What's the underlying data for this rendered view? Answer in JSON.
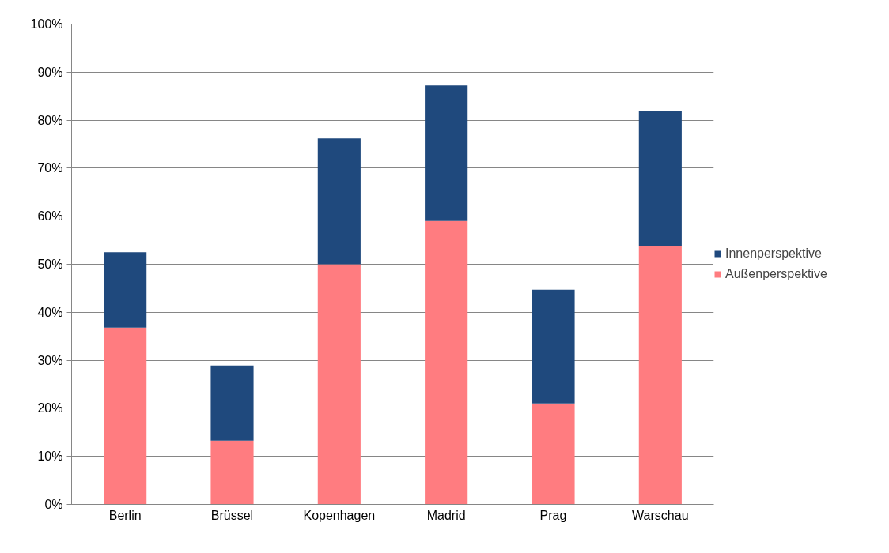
{
  "chart_data": {
    "type": "bar",
    "stacked": true,
    "categories": [
      "Berlin",
      "Brüssel",
      "Kopenhagen",
      "Madrid",
      "Prag",
      "Warschau"
    ],
    "series": [
      {
        "name": "Außenperspektive",
        "color": "#ff7c80",
        "values": [
          36.8,
          13.3,
          50.0,
          59.0,
          21.0,
          53.7
        ]
      },
      {
        "name": "Innenperspektive",
        "color": "#1f497d",
        "values": [
          15.7,
          15.6,
          26.2,
          28.2,
          23.7,
          28.2
        ]
      }
    ],
    "ylim": [
      0,
      100
    ],
    "yticks": [
      {
        "value": 0,
        "label": "0%"
      },
      {
        "value": 10,
        "label": "10%"
      },
      {
        "value": 20,
        "label": "20%"
      },
      {
        "value": 30,
        "label": "30%"
      },
      {
        "value": 40,
        "label": "40%"
      },
      {
        "value": 50,
        "label": "50%"
      },
      {
        "value": 60,
        "label": "60%"
      },
      {
        "value": 70,
        "label": "70%"
      },
      {
        "value": 80,
        "label": "80%"
      },
      {
        "value": 90,
        "label": "90%"
      },
      {
        "value": 100,
        "label": "100%"
      }
    ],
    "grid": "y",
    "legend": "right"
  }
}
